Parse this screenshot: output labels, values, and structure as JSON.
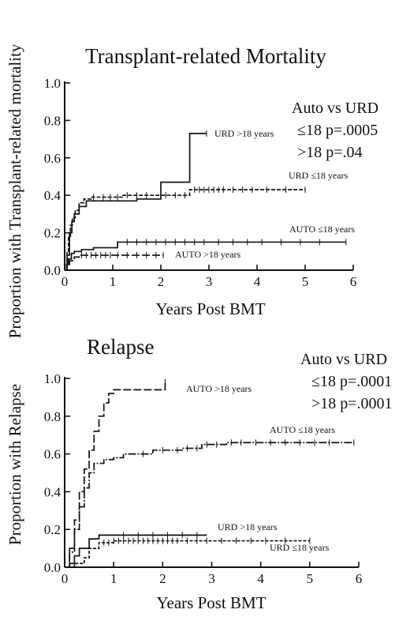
{
  "figure": {
    "ylabel_top": "Proportion with Transplant-related mortality",
    "ylabel_bottom": "Proportion with Relapse"
  },
  "chart_data": [
    {
      "type": "line",
      "title": "Transplant-related Mortality",
      "xlabel": "Years Post BMT",
      "ylabel": "Proportion with Transplant-related mortality",
      "xlim": [
        0,
        6
      ],
      "ylim": [
        0,
        1.0
      ],
      "x_ticks": [
        "0",
        "1",
        "2",
        "3",
        "4",
        "5",
        "6"
      ],
      "y_ticks": [
        "0.0",
        "0.2",
        "0.4",
        "0.6",
        "0.8",
        "1.0"
      ],
      "stat_text": [
        "Auto vs URD",
        "≤18 p=.0005",
        ">18 p=.04"
      ],
      "series": [
        {
          "name": "URD >18 years",
          "x": [
            0,
            0.05,
            0.1,
            0.15,
            0.2,
            0.3,
            0.45,
            0.7,
            1.0,
            1.5,
            2.0,
            2.6,
            2.95
          ],
          "y": [
            0,
            0.08,
            0.2,
            0.26,
            0.3,
            0.34,
            0.37,
            0.37,
            0.37,
            0.38,
            0.47,
            0.73,
            0.73
          ],
          "censored": [
            2.95
          ]
        },
        {
          "name": "URD ≤18 years",
          "x": [
            0,
            0.05,
            0.08,
            0.12,
            0.16,
            0.22,
            0.3,
            0.4,
            0.55,
            0.8,
            1.2,
            2.2,
            2.6,
            5.0
          ],
          "y": [
            0,
            0.1,
            0.18,
            0.24,
            0.28,
            0.32,
            0.36,
            0.38,
            0.39,
            0.39,
            0.4,
            0.4,
            0.43,
            0.43
          ],
          "censored": [
            0.6,
            0.8,
            0.95,
            1.1,
            1.3,
            1.5,
            1.7,
            2.1,
            2.3,
            2.5,
            2.7,
            2.8,
            2.9,
            3.0,
            3.1,
            3.2,
            3.3,
            3.5,
            3.7,
            3.9,
            4.2,
            4.6,
            5.0
          ]
        },
        {
          "name": "AUTO ≤18 years",
          "x": [
            0,
            0.04,
            0.08,
            0.14,
            0.2,
            0.35,
            0.6,
            1.1,
            2.0,
            5.85
          ],
          "y": [
            0,
            0.03,
            0.06,
            0.09,
            0.1,
            0.11,
            0.12,
            0.15,
            0.15,
            0.15
          ],
          "censored": [
            1.3,
            1.5,
            1.7,
            1.9,
            2.1,
            2.3,
            2.5,
            2.7,
            2.9,
            3.2,
            3.5,
            3.8,
            4.1,
            4.5,
            4.9,
            5.3,
            5.85
          ]
        },
        {
          "name": "AUTO >18 years",
          "x": [
            0,
            0.05,
            0.1,
            0.2,
            0.3,
            2.05
          ],
          "y": [
            0,
            0.03,
            0.05,
            0.07,
            0.08,
            0.08
          ],
          "censored": [
            0.35,
            0.45,
            0.55,
            0.65,
            0.75,
            0.85,
            0.95,
            1.1,
            1.3,
            1.5,
            1.7,
            1.9,
            2.05
          ]
        }
      ]
    },
    {
      "type": "line",
      "title": "Relapse",
      "xlabel": "Years Post BMT",
      "ylabel": "Proportion with Relapse",
      "xlim": [
        0,
        6
      ],
      "ylim": [
        0,
        1.0
      ],
      "x_ticks": [
        "0",
        "1",
        "2",
        "3",
        "4",
        "5",
        "6"
      ],
      "y_ticks": [
        "0.0",
        "0.2",
        "0.4",
        "0.6",
        "0.8",
        "1.0"
      ],
      "stat_text": [
        "Auto vs URD",
        "≤18 p=.0001",
        ">18 p=.0001"
      ],
      "series": [
        {
          "name": "AUTO >18 years",
          "x": [
            0,
            0.1,
            0.2,
            0.3,
            0.4,
            0.5,
            0.6,
            0.7,
            0.8,
            0.9,
            1.0,
            2.0,
            2.05
          ],
          "y": [
            0,
            0.1,
            0.25,
            0.4,
            0.52,
            0.62,
            0.72,
            0.8,
            0.87,
            0.92,
            0.94,
            0.94,
            0.98
          ],
          "censored": [
            2.05
          ]
        },
        {
          "name": "AUTO ≤18 years",
          "x": [
            0,
            0.1,
            0.2,
            0.3,
            0.4,
            0.5,
            0.6,
            0.8,
            1.0,
            1.2,
            1.5,
            1.8,
            2.4,
            2.8,
            3.3,
            3.8,
            5.9
          ],
          "y": [
            0,
            0.08,
            0.2,
            0.32,
            0.42,
            0.5,
            0.55,
            0.57,
            0.58,
            0.6,
            0.6,
            0.62,
            0.63,
            0.65,
            0.66,
            0.66,
            0.66
          ],
          "censored": [
            1.6,
            2.0,
            2.3,
            2.5,
            2.7,
            2.9,
            3.1,
            3.4,
            3.6,
            3.9,
            4.2,
            4.5,
            4.8,
            5.1,
            5.4,
            5.9
          ]
        },
        {
          "name": "URD >18 years",
          "x": [
            0,
            0.1,
            0.2,
            0.3,
            0.5,
            0.7,
            1.0,
            2.9
          ],
          "y": [
            0,
            0.02,
            0.06,
            0.1,
            0.15,
            0.17,
            0.17,
            0.17
          ],
          "censored": [
            1.2,
            1.5,
            1.8,
            2.1,
            2.4,
            2.7
          ]
        },
        {
          "name": "URD ≤18 years",
          "x": [
            0,
            0.2,
            0.4,
            0.5,
            0.7,
            1.0,
            2.0,
            5.0
          ],
          "y": [
            0,
            0.02,
            0.05,
            0.1,
            0.13,
            0.14,
            0.14,
            0.14
          ],
          "censored": [
            0.8,
            0.9,
            1.0,
            1.1,
            1.2,
            1.3,
            1.4,
            1.5,
            1.6,
            1.7,
            1.8,
            1.9,
            2.0,
            2.1,
            2.2,
            2.3,
            2.5,
            2.7,
            2.9,
            3.2,
            3.5,
            3.8,
            4.1,
            4.5,
            5.0
          ]
        }
      ]
    }
  ]
}
